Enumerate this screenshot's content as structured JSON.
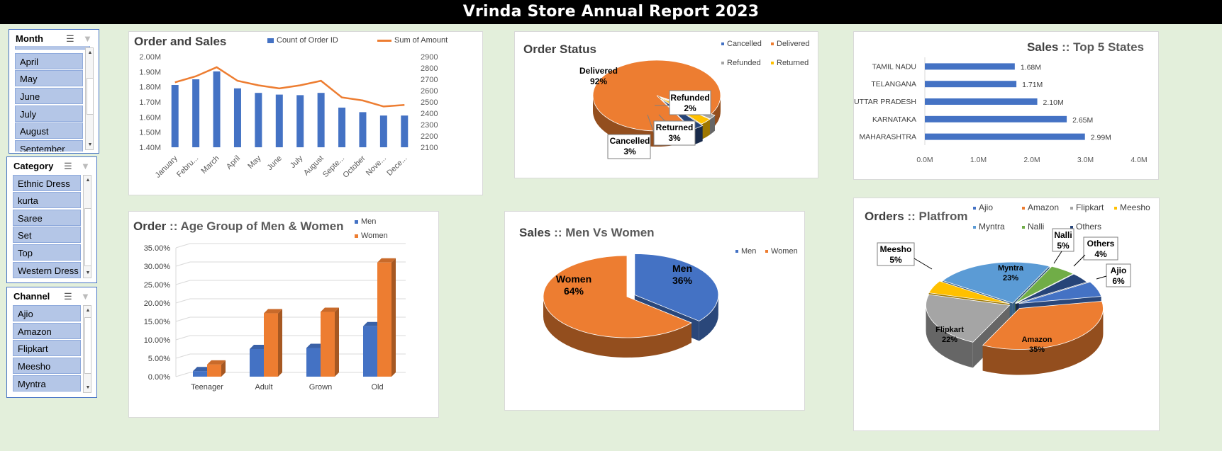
{
  "title": "Vrinda Store Annual Report 2023",
  "colors": {
    "blue": "#4472c4",
    "orange": "#ed7d31",
    "gray": "#a5a5a5",
    "yellow": "#ffc000",
    "lightblue": "#5b9bd5",
    "green": "#70ad47",
    "navy": "#264478",
    "background": "#e3efdb",
    "title_bar": "#000000"
  },
  "slicers": {
    "month": {
      "header": "Month",
      "items": [
        "April",
        "May",
        "June",
        "July",
        "August",
        "September"
      ],
      "icon_multiselect": "multi-select-icon",
      "icon_clear": "clear-filter-icon"
    },
    "category": {
      "header": "Category",
      "items": [
        "Ethnic Dress",
        "kurta",
        "Saree",
        "Set",
        "Top",
        "Western Dress"
      ],
      "icon_multiselect": "multi-select-icon",
      "icon_clear": "clear-filter-icon"
    },
    "channel": {
      "header": "Channel",
      "items": [
        "Ajio",
        "Amazon",
        "Flipkart",
        "Meesho",
        "Myntra"
      ],
      "icon_multiselect": "multi-select-icon",
      "icon_clear": "clear-filter-icon"
    }
  },
  "order_sales": {
    "title": "Order and Sales",
    "chart_data": {
      "type": "bar",
      "categories": [
        "January",
        "Febru...",
        "March",
        "April",
        "May",
        "June",
        "July",
        "August",
        "Septe...",
        "October",
        "Nove...",
        "Dece..."
      ],
      "series": [
        {
          "name": "Count of Order ID",
          "type": "bar",
          "axis": "right",
          "values": [
            2650,
            2700,
            2770,
            2620,
            2580,
            2565,
            2560,
            2580,
            2450,
            2410,
            2380,
            2380
          ]
        },
        {
          "name": "Sum of Amount",
          "type": "line",
          "axis": "left",
          "values": [
            1.83,
            1.87,
            1.93,
            1.84,
            1.81,
            1.79,
            1.81,
            1.84,
            1.73,
            1.71,
            1.67,
            1.68
          ]
        }
      ],
      "yleft_ticks": [
        "2.00M",
        "1.90M",
        "1.80M",
        "1.70M",
        "1.60M",
        "1.50M",
        "1.40M"
      ],
      "yleft_lim": [
        1.4,
        2.0
      ],
      "yright_ticks": [
        "2900",
        "2800",
        "2700",
        "2600",
        "2500",
        "2400",
        "2300",
        "2200",
        "2100"
      ],
      "yright_lim": [
        2100,
        2900
      ],
      "legend": "top"
    }
  },
  "order_status": {
    "title": "Order Status",
    "chart_data": {
      "type": "pie",
      "legend": [
        "Cancelled",
        "Delivered",
        "Refunded",
        "Returned"
      ],
      "slices": [
        {
          "label": "Delivered",
          "value": 92,
          "display": "92%"
        },
        {
          "label": "Refunded",
          "value": 2,
          "display": "2%"
        },
        {
          "label": "Returned",
          "value": 3,
          "display": "3%"
        },
        {
          "label": "Cancelled",
          "value": 3,
          "display": "3%"
        }
      ]
    }
  },
  "top_states": {
    "title": "Sales",
    "title_suffix": ":: Top 5 States",
    "chart_data": {
      "type": "bar",
      "orientation": "horizontal",
      "categories": [
        "TAMIL NADU",
        "TELANGANA",
        "UTTAR PRADESH",
        "KARNATAKA",
        "MAHARASHTRA"
      ],
      "values": [
        1.68,
        1.71,
        2.1,
        2.65,
        2.99
      ],
      "labels": [
        "1.68M",
        "1.71M",
        "2.10M",
        "2.65M",
        "2.99M"
      ],
      "x_ticks": [
        "0.0M",
        "1.0M",
        "2.0M",
        "3.0M",
        "4.0M"
      ],
      "xlim": [
        0,
        4
      ]
    }
  },
  "age_group": {
    "title": "Order",
    "title_suffix": ":: Age Group of Men & Women",
    "chart_data": {
      "type": "bar",
      "categories": [
        "Teenager",
        "Adult",
        "Grown",
        "Old"
      ],
      "series": [
        {
          "name": "Men",
          "values": [
            1.5,
            7.5,
            7.8,
            13.7
          ]
        },
        {
          "name": "Women",
          "values": [
            3.3,
            17.2,
            17.6,
            31.0
          ]
        }
      ],
      "y_ticks": [
        "35.00%",
        "30.00%",
        "25.00%",
        "20.00%",
        "15.00%",
        "10.00%",
        "5.00%",
        "0.00%"
      ],
      "ylim": [
        0,
        35
      ],
      "legend": "top-right"
    }
  },
  "men_women": {
    "title": "Sales",
    "title_suffix": "::  Men Vs Women",
    "chart_data": {
      "type": "pie",
      "legend": [
        "Men",
        "Women"
      ],
      "slices": [
        {
          "label": "Men",
          "value": 36,
          "display": "36%"
        },
        {
          "label": "Women",
          "value": 64,
          "display": "64%"
        }
      ]
    }
  },
  "platform": {
    "title": "Orders",
    "title_suffix": ":: Platfrom",
    "chart_data": {
      "type": "pie",
      "legend": [
        "Ajio",
        "Amazon",
        "Flipkart",
        "Meesho",
        "Myntra",
        "Nalli",
        "Others"
      ],
      "slices": [
        {
          "label": "Amazon",
          "value": 35,
          "display": "35%"
        },
        {
          "label": "Flipkart",
          "value": 22,
          "display": "22%"
        },
        {
          "label": "Meesho",
          "value": 5,
          "display": "5%"
        },
        {
          "label": "Myntra",
          "value": 23,
          "display": "23%"
        },
        {
          "label": "Nalli",
          "value": 5,
          "display": "5%"
        },
        {
          "label": "Others",
          "value": 4,
          "display": "4%"
        },
        {
          "label": "Ajio",
          "value": 6,
          "display": "6%"
        }
      ]
    }
  }
}
